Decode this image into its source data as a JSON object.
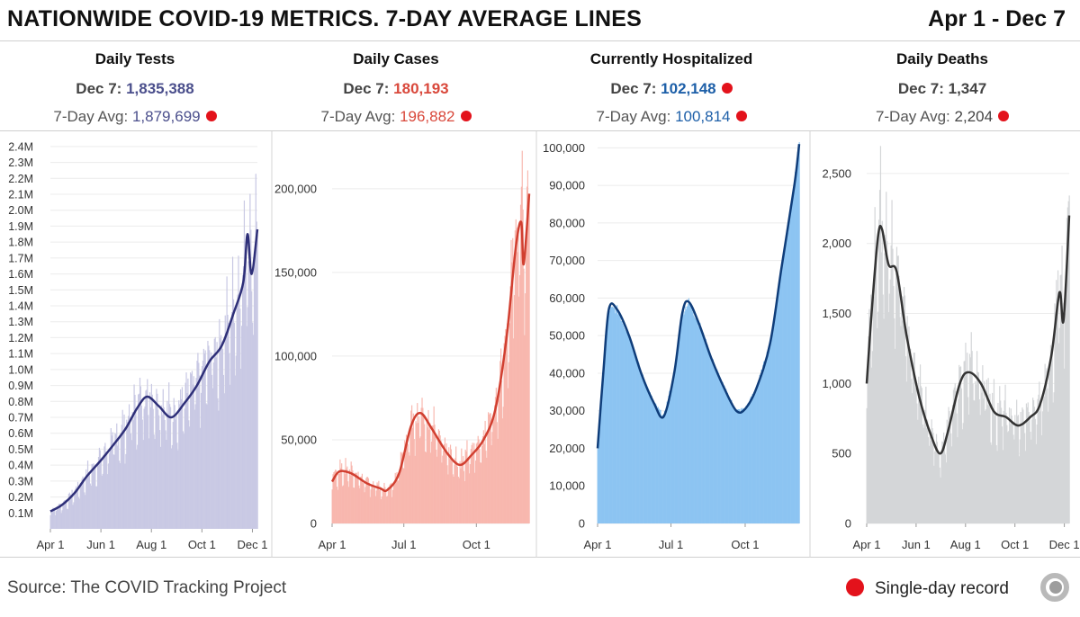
{
  "header": {
    "title": "NATIONWIDE COVID-19 METRICS. 7-DAY AVERAGE LINES",
    "daterange": "Apr 1 - Dec 7"
  },
  "stats": [
    {
      "title": "Daily Tests",
      "today_label": "Dec 7:",
      "today_value": "1,835,388",
      "avg_label": "7-Day Avg:",
      "avg_value": "1,879,699",
      "today_record": false,
      "avg_record": true,
      "color": "#4b4f8c"
    },
    {
      "title": "Daily Cases",
      "today_label": "Dec 7:",
      "today_value": "180,193",
      "avg_label": "7-Day Avg:",
      "avg_value": "196,882",
      "today_record": false,
      "avg_record": true,
      "color": "#d9483b"
    },
    {
      "title": "Currently Hospitalized",
      "today_label": "Dec 7:",
      "today_value": "102,148",
      "avg_label": "7-Day Avg:",
      "avg_value": "100,814",
      "today_record": true,
      "avg_record": true,
      "color": "#1d5fa8"
    },
    {
      "title": "Daily Deaths",
      "today_label": "Dec 7:",
      "today_value": "1,347",
      "avg_label": "7-Day Avg:",
      "avg_value": "2,204",
      "today_record": false,
      "avg_record": true,
      "color": "#444444"
    }
  ],
  "footer": {
    "source": "Source: The COVID Tracking Project",
    "legend_label": "Single-day record",
    "record_color": "#e3121b"
  },
  "chart_data": [
    {
      "type": "bar",
      "title": "Daily Tests",
      "x_range": [
        "2020-04-01",
        "2020-12-07"
      ],
      "x_ticks": [
        [
          "2020-04-01",
          "Apr 1"
        ],
        [
          "2020-06-01",
          "Jun 1"
        ],
        [
          "2020-08-01",
          "Aug 1"
        ],
        [
          "2020-10-01",
          "Oct 1"
        ],
        [
          "2020-12-01",
          "Dec 1"
        ]
      ],
      "y_ticks": [
        [
          100000,
          "0.1M"
        ],
        [
          200000,
          "0.2M"
        ],
        [
          300000,
          "0.3M"
        ],
        [
          400000,
          "0.4M"
        ],
        [
          500000,
          "0.5M"
        ],
        [
          600000,
          "0.6M"
        ],
        [
          700000,
          "0.7M"
        ],
        [
          800000,
          "0.8M"
        ],
        [
          900000,
          "0.9M"
        ],
        [
          1000000,
          "1.0M"
        ],
        [
          1100000,
          "1.1M"
        ],
        [
          1200000,
          "1.2M"
        ],
        [
          1300000,
          "1.3M"
        ],
        [
          1400000,
          "1.4M"
        ],
        [
          1500000,
          "1.5M"
        ],
        [
          1600000,
          "1.6M"
        ],
        [
          1700000,
          "1.7M"
        ],
        [
          1800000,
          "1.8M"
        ],
        [
          1900000,
          "1.9M"
        ],
        [
          2000000,
          "2.0M"
        ],
        [
          2100000,
          "2.1M"
        ],
        [
          2200000,
          "2.2M"
        ],
        [
          2300000,
          "2.3M"
        ],
        [
          2400000,
          "2.4M"
        ]
      ],
      "ylim": [
        0,
        2450000
      ],
      "grid": true,
      "bar_color": "#c9c9e4",
      "line_color": "#2e2f78",
      "avg_7day": [
        [
          "2020-04-01",
          110000
        ],
        [
          "2020-04-15",
          150000
        ],
        [
          "2020-05-01",
          230000
        ],
        [
          "2020-05-15",
          330000
        ],
        [
          "2020-06-01",
          430000
        ],
        [
          "2020-06-15",
          520000
        ],
        [
          "2020-07-01",
          630000
        ],
        [
          "2020-07-15",
          760000
        ],
        [
          "2020-07-27",
          830000
        ],
        [
          "2020-08-10",
          770000
        ],
        [
          "2020-08-25",
          700000
        ],
        [
          "2020-09-10",
          790000
        ],
        [
          "2020-09-25",
          900000
        ],
        [
          "2020-10-10",
          1050000
        ],
        [
          "2020-10-25",
          1150000
        ],
        [
          "2020-11-08",
          1350000
        ],
        [
          "2020-11-20",
          1550000
        ],
        [
          "2020-11-25",
          1850000
        ],
        [
          "2020-11-30",
          1600000
        ],
        [
          "2020-12-07",
          1880000
        ]
      ]
    },
    {
      "type": "bar",
      "title": "Daily Cases",
      "x_range": [
        "2020-04-01",
        "2020-12-07"
      ],
      "x_ticks": [
        [
          "2020-04-01",
          "Apr 1"
        ],
        [
          "2020-07-01",
          "Jul 1"
        ],
        [
          "2020-10-01",
          "Oct 1"
        ]
      ],
      "y_ticks": [
        [
          0,
          "0"
        ],
        [
          50000,
          "50,000"
        ],
        [
          100000,
          "100,000"
        ],
        [
          150000,
          "150,000"
        ],
        [
          200000,
          "200,000"
        ]
      ],
      "ylim": [
        0,
        230000
      ],
      "grid": true,
      "bar_color": "#f8b7ae",
      "line_color": "#d13f30",
      "avg_7day": [
        [
          "2020-04-01",
          25000
        ],
        [
          "2020-04-10",
          31000
        ],
        [
          "2020-04-25",
          30000
        ],
        [
          "2020-05-15",
          24000
        ],
        [
          "2020-06-01",
          21000
        ],
        [
          "2020-06-10",
          20000
        ],
        [
          "2020-06-25",
          30000
        ],
        [
          "2020-07-10",
          58000
        ],
        [
          "2020-07-22",
          66000
        ],
        [
          "2020-08-05",
          57000
        ],
        [
          "2020-08-25",
          42000
        ],
        [
          "2020-09-10",
          35000
        ],
        [
          "2020-09-25",
          41000
        ],
        [
          "2020-10-10",
          50000
        ],
        [
          "2020-10-25",
          68000
        ],
        [
          "2020-11-08",
          110000
        ],
        [
          "2020-11-20",
          165000
        ],
        [
          "2020-11-27",
          180000
        ],
        [
          "2020-11-30",
          155000
        ],
        [
          "2020-12-07",
          197000
        ]
      ]
    },
    {
      "type": "area",
      "title": "Currently Hospitalized",
      "x_range": [
        "2020-04-01",
        "2020-12-07"
      ],
      "x_ticks": [
        [
          "2020-04-01",
          "Apr 1"
        ],
        [
          "2020-07-01",
          "Jul 1"
        ],
        [
          "2020-10-01",
          "Oct 1"
        ]
      ],
      "y_ticks": [
        [
          0,
          "0"
        ],
        [
          10000,
          "10,000"
        ],
        [
          20000,
          "20,000"
        ],
        [
          30000,
          "30,000"
        ],
        [
          40000,
          "40,000"
        ],
        [
          50000,
          "50,000"
        ],
        [
          60000,
          "60,000"
        ],
        [
          70000,
          "70,000"
        ],
        [
          80000,
          "80,000"
        ],
        [
          90000,
          "90,000"
        ],
        [
          100000,
          "100,000"
        ]
      ],
      "ylim": [
        0,
        102000
      ],
      "grid": true,
      "bar_color": "#8cc4f2",
      "line_color": "#0f3d7a",
      "avg_7day": [
        [
          "2020-04-01",
          20000
        ],
        [
          "2020-04-08",
          40000
        ],
        [
          "2020-04-15",
          57000
        ],
        [
          "2020-04-25",
          57000
        ],
        [
          "2020-05-10",
          50000
        ],
        [
          "2020-05-25",
          40000
        ],
        [
          "2020-06-10",
          32000
        ],
        [
          "2020-06-22",
          28500
        ],
        [
          "2020-07-05",
          40000
        ],
        [
          "2020-07-15",
          56000
        ],
        [
          "2020-07-23",
          59000
        ],
        [
          "2020-08-05",
          53000
        ],
        [
          "2020-08-20",
          44000
        ],
        [
          "2020-09-05",
          36000
        ],
        [
          "2020-09-20",
          30000
        ],
        [
          "2020-10-01",
          30500
        ],
        [
          "2020-10-15",
          36000
        ],
        [
          "2020-11-01",
          48000
        ],
        [
          "2020-11-15",
          68000
        ],
        [
          "2020-12-01",
          90000
        ],
        [
          "2020-12-07",
          101000
        ]
      ]
    },
    {
      "type": "bar",
      "title": "Daily Deaths",
      "x_range": [
        "2020-04-01",
        "2020-12-07"
      ],
      "x_ticks": [
        [
          "2020-04-01",
          "Apr 1"
        ],
        [
          "2020-06-01",
          "Jun 1"
        ],
        [
          "2020-08-01",
          "Aug 1"
        ],
        [
          "2020-10-01",
          "Oct 1"
        ],
        [
          "2020-12-01",
          "Dec 1"
        ]
      ],
      "y_ticks": [
        [
          0,
          "0"
        ],
        [
          500,
          "500"
        ],
        [
          1000,
          "1,000"
        ],
        [
          1500,
          "1,500"
        ],
        [
          2000,
          "2,000"
        ],
        [
          2500,
          "2,500"
        ]
      ],
      "ylim": [
        0,
        2750
      ],
      "grid": true,
      "bar_color": "#d4d6d8",
      "line_color": "#333333",
      "avg_7day": [
        [
          "2020-04-01",
          1000
        ],
        [
          "2020-04-07",
          1500
        ],
        [
          "2020-04-15",
          2050
        ],
        [
          "2020-04-20",
          2100
        ],
        [
          "2020-04-28",
          1850
        ],
        [
          "2020-05-08",
          1800
        ],
        [
          "2020-05-20",
          1350
        ],
        [
          "2020-06-05",
          900
        ],
        [
          "2020-06-20",
          620
        ],
        [
          "2020-07-01",
          500
        ],
        [
          "2020-07-10",
          650
        ],
        [
          "2020-07-25",
          1000
        ],
        [
          "2020-08-05",
          1080
        ],
        [
          "2020-08-20",
          1000
        ],
        [
          "2020-09-05",
          800
        ],
        [
          "2020-09-20",
          760
        ],
        [
          "2020-10-05",
          700
        ],
        [
          "2020-10-20",
          760
        ],
        [
          "2020-11-01",
          850
        ],
        [
          "2020-11-15",
          1200
        ],
        [
          "2020-11-25",
          1650
        ],
        [
          "2020-11-30",
          1450
        ],
        [
          "2020-12-07",
          2200
        ]
      ]
    }
  ]
}
